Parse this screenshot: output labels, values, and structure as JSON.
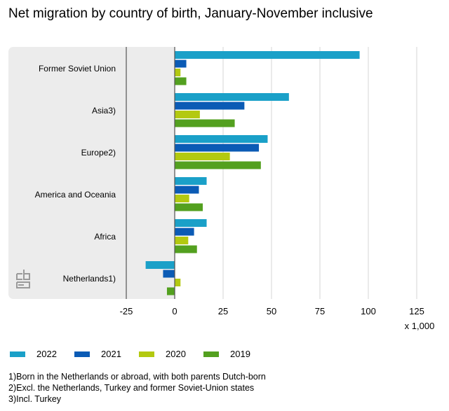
{
  "title": "Net migration by country of birth, January-November inclusive",
  "footnotes": [
    "1)Born in the Netherlands or abroad, with both parents Dutch-born",
    "2)Excl. the Netherlands, Turkey and former Soviet-Union states",
    "3)Incl. Turkey"
  ],
  "logo_text": "cbs",
  "chart_data": {
    "type": "bar",
    "orientation": "horizontal",
    "title": "Net migration by country of birth, January-November inclusive",
    "unit_label": "x 1,000",
    "xlim": [
      -25,
      125
    ],
    "xticks": [
      -25,
      0,
      25,
      50,
      75,
      100,
      125
    ],
    "grid": true,
    "legend_position": "bottom",
    "categories": [
      "Former Soviet Union",
      "Asia3)",
      "Europe2)",
      "America and Oceania",
      "Africa",
      "Netherlands1)"
    ],
    "series": [
      {
        "name": "2022",
        "color": "#1aa0c8",
        "values": [
          95.5,
          59,
          48,
          16.5,
          16.5,
          -15
        ]
      },
      {
        "name": "2021",
        "color": "#0b5bb5",
        "values": [
          6,
          36,
          43.5,
          12.5,
          10,
          -6
        ]
      },
      {
        "name": "2020",
        "color": "#b3c910",
        "values": [
          3,
          13,
          28.5,
          7.5,
          7,
          3
        ]
      },
      {
        "name": "2019",
        "color": "#53a01f",
        "values": [
          6,
          31,
          44.5,
          14.5,
          11.5,
          -4
        ]
      }
    ]
  }
}
